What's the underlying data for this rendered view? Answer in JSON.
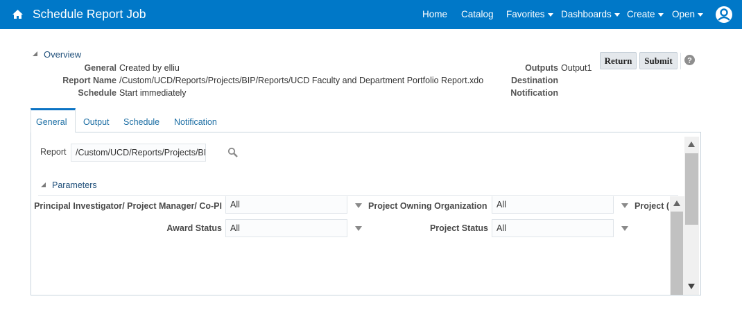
{
  "header": {
    "title": "Schedule Report Job",
    "home_icon": "home-icon",
    "nav": [
      {
        "label": "Home"
      },
      {
        "label": "Catalog"
      },
      {
        "label": "Favorites",
        "dropdown": true
      },
      {
        "label": "Dashboards",
        "dropdown": true
      },
      {
        "label": "Create",
        "dropdown": true
      },
      {
        "label": "Open",
        "dropdown": true
      }
    ],
    "user_icon": "user-avatar-icon",
    "color": "#0078c8"
  },
  "overview": {
    "title": "Overview",
    "general_label": "General",
    "general_value": "Created by elliu",
    "report_name_label": "Report Name",
    "report_name_value": "/Custom/UCD/Reports/Projects/BIP/Reports/UCD Faculty and Department Portfolio Report.xdo",
    "schedule_label": "Schedule",
    "schedule_value": "Start immediately",
    "outputs_label": "Outputs",
    "outputs_value": "Output1",
    "destination_label": "Destination",
    "notification_label": "Notification"
  },
  "actions": {
    "return": "Return",
    "submit": "Submit",
    "help_icon": "help-icon"
  },
  "tabs": [
    {
      "label": "General",
      "active": true
    },
    {
      "label": "Output"
    },
    {
      "label": "Schedule"
    },
    {
      "label": "Notification"
    }
  ],
  "general": {
    "report_label": "Report",
    "report_value": "/Custom/UCD/Reports/Projects/BIP/R",
    "parameters_title": "Parameters",
    "params": {
      "pi_label": "Principal Investigator/ Project Manager/ Co-PI",
      "pi_value": "All",
      "org_label": "Project Owning Organization",
      "org_value": "All",
      "project_cut_label": "Project (",
      "award_label": "Award Status",
      "award_value": "All",
      "status_label": "Project Status",
      "status_value": "All"
    }
  }
}
